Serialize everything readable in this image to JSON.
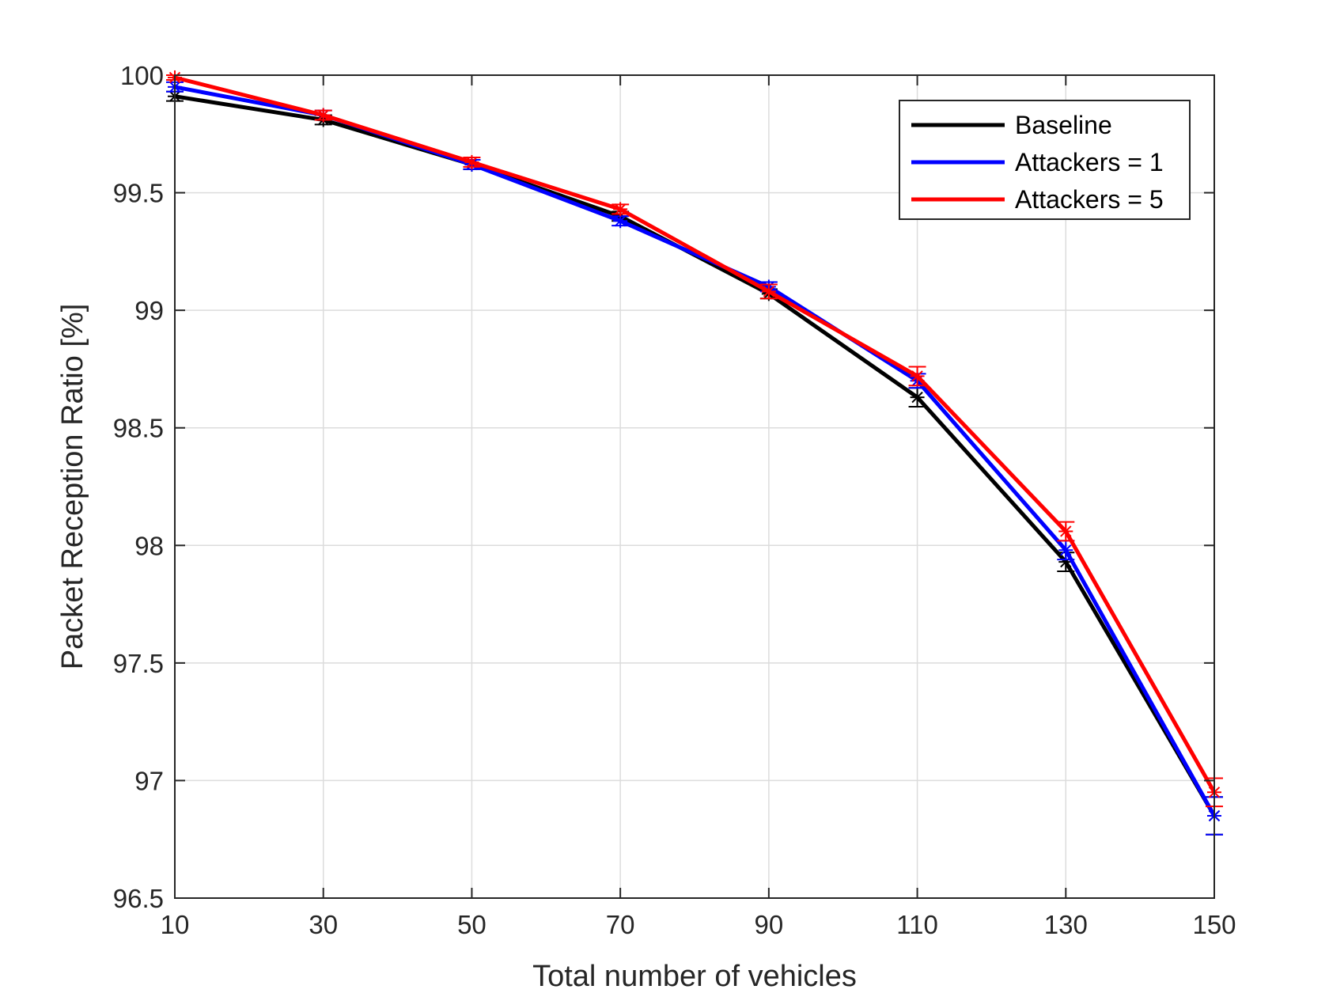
{
  "chart_data": {
    "type": "line",
    "xlabel": "Total number of vehicles",
    "ylabel": "Packet Reception Ratio [%]",
    "xlim": [
      10,
      150
    ],
    "ylim": [
      96.5,
      100
    ],
    "xticks": [
      10,
      30,
      50,
      70,
      90,
      110,
      130,
      150
    ],
    "yticks": [
      96.5,
      97,
      97.5,
      98,
      98.5,
      99,
      99.5,
      100
    ],
    "xtick_labels": [
      "10",
      "30",
      "50",
      "70",
      "90",
      "110",
      "130",
      "150"
    ],
    "ytick_labels": [
      "96.5",
      "97",
      "97.5",
      "98",
      "98.5",
      "99",
      "99.5",
      "100"
    ],
    "grid": true,
    "legend_position": "top-right",
    "x": [
      10,
      30,
      50,
      70,
      90,
      110,
      130,
      150
    ],
    "series": [
      {
        "name": "Baseline",
        "color": "#000000",
        "values": [
          99.91,
          99.81,
          99.62,
          99.4,
          99.07,
          98.63,
          97.93,
          96.85
        ],
        "errors": [
          0.02,
          0.02,
          0.02,
          0.02,
          0.02,
          0.04,
          0.04,
          0.08
        ]
      },
      {
        "name": "Attackers = 1",
        "color": "#0000ff",
        "values": [
          99.95,
          99.83,
          99.62,
          99.38,
          99.1,
          98.7,
          97.98,
          96.85
        ],
        "errors": [
          0.02,
          0.02,
          0.02,
          0.02,
          0.02,
          0.03,
          0.04,
          0.08
        ]
      },
      {
        "name": "Attackers = 5",
        "color": "#ff0000",
        "values": [
          99.99,
          99.83,
          99.63,
          99.43,
          99.08,
          98.72,
          98.06,
          96.95
        ],
        "errors": [
          0.01,
          0.02,
          0.02,
          0.02,
          0.03,
          0.04,
          0.04,
          0.06
        ]
      }
    ]
  }
}
